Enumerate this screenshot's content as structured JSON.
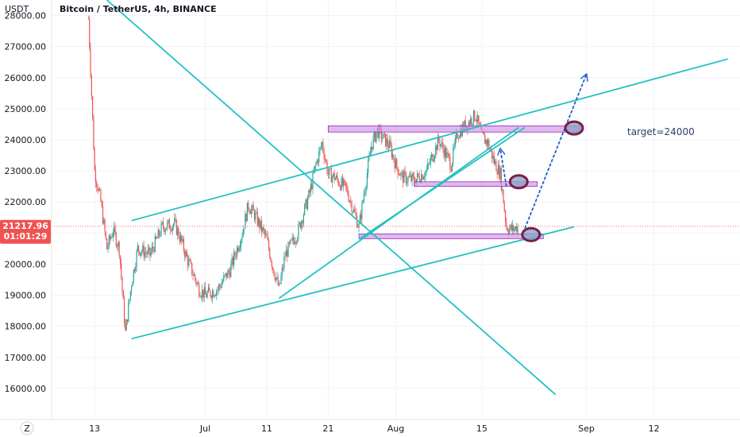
{
  "chart_data": {
    "type": "candlestick",
    "title": "Bitcoin / TetherUS, 4h, BINANCE",
    "currency": "USDT",
    "timezone_button": "Z",
    "y_ticks": [
      "28000.00",
      "27000.00",
      "26000.00",
      "25000.00",
      "24000.00",
      "23000.00",
      "22000.00",
      "21000.00",
      "20000.00",
      "19000.00",
      "18000.00",
      "17000.00",
      "16000.00"
    ],
    "y_tick_values": [
      28000,
      27000,
      26000,
      25000,
      24000,
      23000,
      22000,
      21000,
      20000,
      19000,
      18000,
      17000,
      16000
    ],
    "ylim": [
      15000,
      28500
    ],
    "x_ticks": [
      "13",
      "Jul",
      "11",
      "21",
      "Aug",
      "15",
      "Sep",
      "12"
    ],
    "x_tick_dates": [
      "2022-06-13",
      "2022-07-01",
      "2022-07-11",
      "2022-07-21",
      "2022-08-01",
      "2022-08-15",
      "2022-09-01",
      "2022-09-12"
    ],
    "xlim": [
      "2022-06-06",
      "2022-09-26"
    ],
    "last_price": "21217.96",
    "last_price_value": 21217.96,
    "countdown": "01:01:29",
    "annotation": "target=24000",
    "colors": {
      "up": "#26a69a",
      "down": "#ef5350",
      "trendline": "#22c1c3",
      "zone": "#cf9be6",
      "circle": "#7a1d4a",
      "arrow": "#1e63c4",
      "price_tag": "#ef5350"
    },
    "price_path": [
      [
        "2022-06-12",
        27900
      ],
      [
        "2022-06-13",
        23000
      ],
      [
        "2022-06-14",
        22000
      ],
      [
        "2022-06-15",
        20500
      ],
      [
        "2022-06-16",
        21100
      ],
      [
        "2022-06-17",
        20500
      ],
      [
        "2022-06-18",
        17800
      ],
      [
        "2022-06-19",
        19400
      ],
      [
        "2022-06-20",
        20500
      ],
      [
        "2022-06-22",
        20300
      ],
      [
        "2022-06-24",
        21200
      ],
      [
        "2022-06-26",
        21300
      ],
      [
        "2022-06-27",
        20800
      ],
      [
        "2022-06-28",
        20200
      ],
      [
        "2022-06-30",
        19200
      ],
      [
        "2022-07-01",
        19000
      ],
      [
        "2022-07-03",
        19200
      ],
      [
        "2022-07-05",
        19800
      ],
      [
        "2022-07-07",
        21000
      ],
      [
        "2022-07-08",
        21900
      ],
      [
        "2022-07-09",
        21600
      ],
      [
        "2022-07-11",
        20800
      ],
      [
        "2022-07-12",
        19900
      ],
      [
        "2022-07-13",
        19200
      ],
      [
        "2022-07-14",
        20300
      ],
      [
        "2022-07-16",
        21000
      ],
      [
        "2022-07-18",
        22300
      ],
      [
        "2022-07-19",
        23200
      ],
      [
        "2022-07-20",
        23900
      ],
      [
        "2022-07-21",
        22900
      ],
      [
        "2022-07-22",
        22800
      ],
      [
        "2022-07-24",
        22400
      ],
      [
        "2022-07-26",
        21200
      ],
      [
        "2022-07-27",
        22500
      ],
      [
        "2022-07-28",
        23800
      ],
      [
        "2022-07-29",
        24300
      ],
      [
        "2022-07-31",
        23800
      ],
      [
        "2022-08-01",
        23200
      ],
      [
        "2022-08-02",
        22800
      ],
      [
        "2022-08-04",
        22700
      ],
      [
        "2022-08-06",
        23000
      ],
      [
        "2022-08-08",
        24000
      ],
      [
        "2022-08-10",
        23200
      ],
      [
        "2022-08-11",
        24200
      ],
      [
        "2022-08-12",
        24400
      ],
      [
        "2022-08-14",
        24800
      ],
      [
        "2022-08-15",
        24100
      ],
      [
        "2022-08-16",
        23900
      ],
      [
        "2022-08-17",
        23300
      ],
      [
        "2022-08-18",
        22900
      ],
      [
        "2022-08-19",
        21200
      ],
      [
        "2022-08-20",
        21100
      ],
      [
        "2022-08-21",
        21218
      ]
    ],
    "lines": [
      {
        "name": "upper-channel",
        "from": [
          "2022-06-19",
          21400
        ],
        "to": [
          "2022-09-24",
          26600
        ]
      },
      {
        "name": "lower-channel",
        "from": [
          "2022-06-19",
          17600
        ],
        "to": [
          "2022-08-30",
          21200
        ]
      },
      {
        "name": "descending",
        "from": [
          "2022-06-15",
          28500
        ],
        "to": [
          "2022-08-27",
          15800
        ]
      },
      {
        "name": "inner-rising",
        "from": [
          "2022-07-13",
          18900
        ],
        "to": [
          "2022-08-21",
          24400
        ]
      },
      {
        "name": "mid-rising",
        "from": [
          "2022-07-26",
          20800
        ],
        "to": [
          "2022-08-22",
          24400
        ]
      }
    ],
    "zones": [
      {
        "name": "resistance",
        "from": "2022-07-21",
        "to": "2022-08-31",
        "lo": 24250,
        "hi": 24450
      },
      {
        "name": "mid",
        "from": "2022-08-04",
        "to": "2022-08-24",
        "lo": 22500,
        "hi": 22650
      },
      {
        "name": "support",
        "from": "2022-07-26",
        "to": "2022-08-25",
        "lo": 20820,
        "hi": 20970
      }
    ],
    "circles": [
      {
        "at": [
          "2022-08-21",
          22650
        ]
      },
      {
        "at": [
          "2022-08-23",
          20950
        ]
      },
      {
        "at": [
          "2022-08-30",
          24380
        ]
      }
    ],
    "arrows": [
      {
        "from": [
          "2022-08-19",
          22500
        ],
        "to": [
          "2022-08-18",
          23700
        ]
      },
      {
        "from": [
          "2022-08-22",
          21150
        ],
        "to": [
          "2022-09-01",
          26100
        ]
      }
    ]
  }
}
